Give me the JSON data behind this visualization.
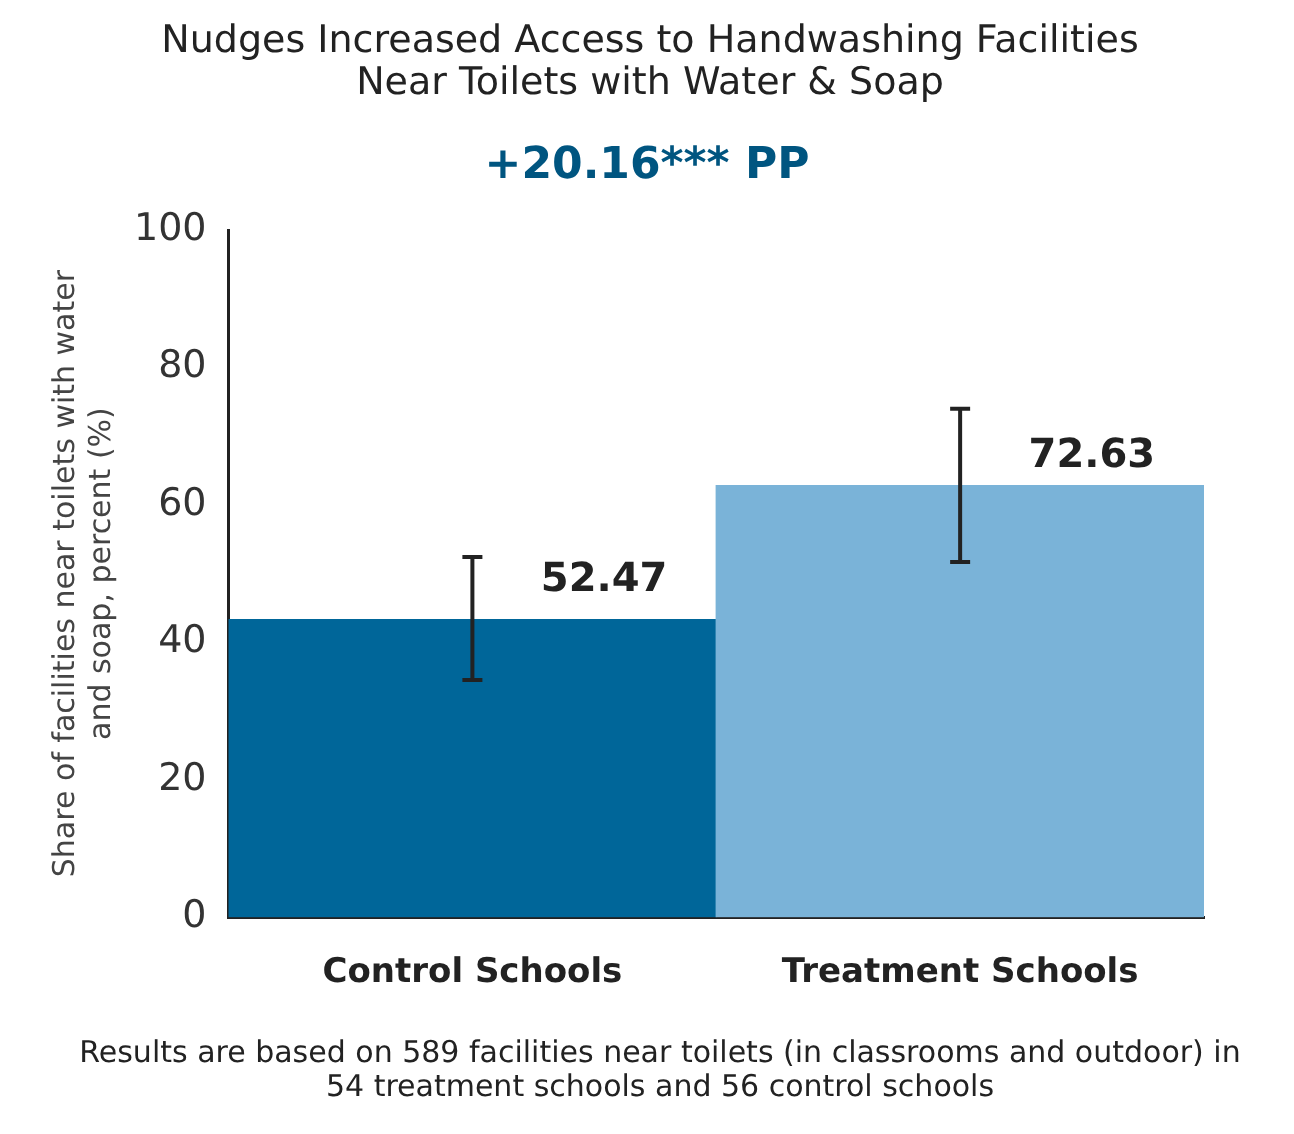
{
  "chart_data": {
    "type": "bar",
    "title": "Nudges Increased Access to Handwashing Facilities Near Toilets with Water & Soap",
    "subtitle": "+20.16*** PP",
    "ylabel": "Share of facilities near toilets with water and soap, percent (%)",
    "categories": [
      "Control Schools",
      "Treatment Schools"
    ],
    "values": [
      43.3,
      62.8
    ],
    "colors": [
      "#006699",
      "#7ab3d8"
    ],
    "errors": [
      [
        34.5,
        52.4
      ],
      [
        51.7,
        74.0
      ]
    ],
    "ylim": [
      0,
      100
    ],
    "yticks": [
      0,
      20,
      40,
      60,
      80,
      100
    ],
    "grid": false,
    "legend": false,
    "annotations": [
      {
        "text": "52.47",
        "x": "Control Schools",
        "y": 49
      },
      {
        "text": "72.63",
        "x": "Treatment Schools",
        "y": 67
      },
      "Results are based on 589 facilities near toilets (in classrooms and outdoor) in 54 treatment schools and 56 control schools"
    ]
  }
}
